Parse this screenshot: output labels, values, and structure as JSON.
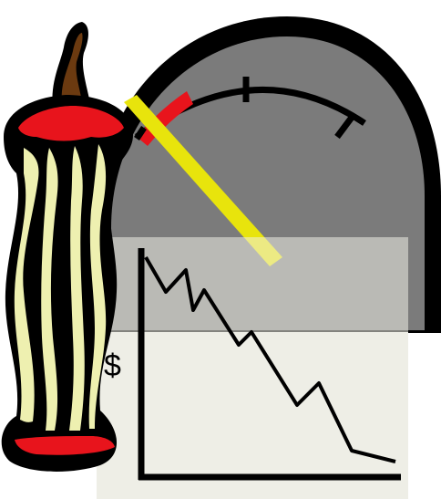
{
  "chart_label": "$",
  "colors": {
    "gauge_body": "#7b7b7b",
    "gauge_rim": "#000000",
    "gauge_red_zone": "#e8141c",
    "needle": "#e8e40c",
    "apple_core_flesh": "#eef0b0",
    "apple_core_red": "#e8141c",
    "stem": "#6b3a10",
    "paper": "#eeeee6",
    "line": "#000000"
  },
  "icons": {
    "main": "falling-fuel-gauge-clipart",
    "core": "apple-core-icon"
  }
}
